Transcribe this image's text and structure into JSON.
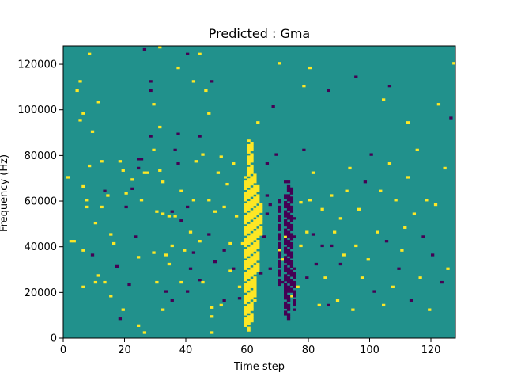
{
  "chart_data": {
    "type": "heatmap",
    "title": "Predicted : Gma",
    "xlabel": "Time step",
    "ylabel": "Frequency (Hz)",
    "xlim": [
      0,
      128
    ],
    "ylim": [
      0,
      128000
    ],
    "x_ticks": [
      0,
      20,
      40,
      60,
      80,
      100,
      120
    ],
    "y_ticks": [
      0,
      20000,
      40000,
      60000,
      80000,
      100000,
      120000
    ],
    "x_tick_labels": [
      "0",
      "20",
      "40",
      "60",
      "80",
      "100",
      "120"
    ],
    "y_tick_labels": [
      "0",
      "20000",
      "40000",
      "60000",
      "80000",
      "100000",
      "120000"
    ],
    "rows": 128,
    "cols": 128,
    "colormap": "viridis",
    "colors": {
      "low": "#440154",
      "mid": "#21918c",
      "high": "#fde725"
    },
    "background_value": 0,
    "cells": [
      [
        1,
        70,
        1
      ],
      [
        2,
        42,
        1
      ],
      [
        3,
        42,
        1
      ],
      [
        4,
        108,
        1
      ],
      [
        5,
        112,
        1
      ],
      [
        5,
        95,
        1
      ],
      [
        6,
        98,
        1
      ],
      [
        6,
        66,
        1
      ],
      [
        6,
        38,
        1
      ],
      [
        6,
        22,
        1
      ],
      [
        7,
        60,
        1
      ],
      [
        7,
        57,
        1
      ],
      [
        8,
        124,
        1
      ],
      [
        8,
        75,
        1
      ],
      [
        9,
        90,
        1
      ],
      [
        9,
        36,
        -1
      ],
      [
        10,
        50,
        1
      ],
      [
        10,
        24,
        1
      ],
      [
        11,
        103,
        1
      ],
      [
        11,
        27,
        1
      ],
      [
        12,
        77,
        1
      ],
      [
        12,
        57,
        1
      ],
      [
        13,
        64,
        -1
      ],
      [
        13,
        24,
        1
      ],
      [
        14,
        62,
        1
      ],
      [
        15,
        45,
        1
      ],
      [
        15,
        18,
        1
      ],
      [
        16,
        41,
        1
      ],
      [
        17,
        31,
        -1
      ],
      [
        18,
        77,
        1
      ],
      [
        18,
        8,
        -1
      ],
      [
        19,
        73,
        1
      ],
      [
        19,
        12,
        1
      ],
      [
        20,
        63,
        1
      ],
      [
        20,
        57,
        -1
      ],
      [
        21,
        23,
        -1
      ],
      [
        22,
        69,
        1
      ],
      [
        22,
        65,
        -1
      ],
      [
        23,
        44,
        -1
      ],
      [
        24,
        78,
        -1
      ],
      [
        24,
        74,
        -1
      ],
      [
        24,
        35,
        1
      ],
      [
        24,
        5,
        1
      ],
      [
        25,
        78,
        -1
      ],
      [
        25,
        60,
        1
      ],
      [
        26,
        126,
        -1
      ],
      [
        26,
        72,
        1
      ],
      [
        26,
        2,
        1
      ],
      [
        27,
        72,
        1
      ],
      [
        28,
        112,
        -1
      ],
      [
        28,
        108,
        -1
      ],
      [
        28,
        88,
        -1
      ],
      [
        29,
        102,
        1
      ],
      [
        29,
        82,
        1
      ],
      [
        29,
        37,
        1
      ],
      [
        30,
        55,
        1
      ],
      [
        30,
        24,
        1
      ],
      [
        31,
        127,
        1
      ],
      [
        31,
        92,
        1
      ],
      [
        31,
        73,
        1
      ],
      [
        32,
        68,
        1
      ],
      [
        32,
        54,
        1
      ],
      [
        32,
        12,
        1
      ],
      [
        33,
        36,
        1
      ],
      [
        33,
        20,
        -1
      ],
      [
        34,
        53,
        1
      ],
      [
        34,
        32,
        1
      ],
      [
        35,
        55,
        -1
      ],
      [
        35,
        40,
        1
      ],
      [
        35,
        16,
        -1
      ],
      [
        36,
        82,
        -1
      ],
      [
        36,
        53,
        1
      ],
      [
        37,
        118,
        1
      ],
      [
        37,
        89,
        -1
      ],
      [
        37,
        76,
        -1
      ],
      [
        38,
        64,
        1
      ],
      [
        38,
        51,
        -1
      ],
      [
        38,
        24,
        1
      ],
      [
        39,
        38,
        1
      ],
      [
        40,
        124,
        -1
      ],
      [
        40,
        57,
        -1
      ],
      [
        40,
        20,
        -1
      ],
      [
        41,
        46,
        1
      ],
      [
        41,
        30,
        -1
      ],
      [
        42,
        112,
        1
      ],
      [
        42,
        60,
        1
      ],
      [
        42,
        37,
        -1
      ],
      [
        43,
        77,
        1
      ],
      [
        44,
        124,
        1
      ],
      [
        44,
        88,
        -1
      ],
      [
        44,
        42,
        1
      ],
      [
        44,
        25,
        -1
      ],
      [
        45,
        80,
        1
      ],
      [
        45,
        24,
        1
      ],
      [
        46,
        108,
        1
      ],
      [
        47,
        98,
        1
      ],
      [
        47,
        60,
        1
      ],
      [
        47,
        45,
        -1
      ],
      [
        48,
        112,
        -1
      ],
      [
        48,
        13,
        1
      ],
      [
        48,
        9,
        1
      ],
      [
        48,
        2,
        1
      ],
      [
        49,
        55,
        1
      ],
      [
        49,
        33,
        -1
      ],
      [
        50,
        72,
        1
      ],
      [
        51,
        79,
        1
      ],
      [
        51,
        14,
        1
      ],
      [
        52,
        16,
        -1
      ],
      [
        52,
        38,
        -1
      ],
      [
        52,
        57,
        1
      ],
      [
        53,
        67,
        1
      ],
      [
        54,
        41,
        1
      ],
      [
        54,
        29,
        1
      ],
      [
        55,
        76,
        1
      ],
      [
        55,
        30,
        -1
      ],
      [
        56,
        53,
        1
      ],
      [
        57,
        17,
        -1
      ],
      [
        57,
        22,
        1
      ],
      [
        58,
        41,
        1
      ],
      [
        59,
        48,
        1
      ],
      [
        60,
        73,
        1
      ],
      [
        61,
        33,
        -1
      ],
      [
        62,
        22,
        1
      ],
      [
        63,
        94,
        1
      ],
      [
        64,
        28,
        -1
      ],
      [
        65,
        44,
        -1
      ],
      [
        66,
        76,
        -1
      ],
      [
        66,
        62,
        -1
      ],
      [
        66,
        54,
        -1
      ],
      [
        67,
        30,
        -1
      ],
      [
        67,
        58,
        -1
      ],
      [
        68,
        101,
        -1
      ],
      [
        69,
        80,
        -1
      ],
      [
        70,
        120,
        1
      ],
      [
        70,
        38,
        1
      ],
      [
        71,
        34,
        1
      ],
      [
        71,
        24,
        -1
      ],
      [
        72,
        68,
        -1
      ],
      [
        72,
        44,
        1
      ],
      [
        72,
        20,
        -1
      ],
      [
        73,
        36,
        -1
      ],
      [
        73,
        16,
        -1
      ],
      [
        74,
        18,
        1
      ],
      [
        75,
        52,
        -1
      ],
      [
        75,
        44,
        -1
      ],
      [
        76,
        22,
        1
      ],
      [
        77,
        40,
        1
      ],
      [
        77,
        59,
        1
      ],
      [
        78,
        110,
        1
      ],
      [
        78,
        82,
        -1
      ],
      [
        79,
        46,
        1
      ],
      [
        79,
        26,
        -1
      ],
      [
        80,
        118,
        1
      ],
      [
        80,
        60,
        1
      ],
      [
        81,
        72,
        1
      ],
      [
        81,
        45,
        -1
      ],
      [
        82,
        32,
        -1
      ],
      [
        83,
        14,
        1
      ],
      [
        84,
        40,
        -1
      ],
      [
        84,
        56,
        1
      ],
      [
        85,
        26,
        1
      ],
      [
        86,
        108,
        -1
      ],
      [
        86,
        14,
        -1
      ],
      [
        87,
        62,
        1
      ],
      [
        87,
        40,
        -1
      ],
      [
        88,
        46,
        1
      ],
      [
        89,
        16,
        1
      ],
      [
        90,
        52,
        1
      ],
      [
        90,
        32,
        -1
      ],
      [
        91,
        36,
        1
      ],
      [
        92,
        64,
        1
      ],
      [
        93,
        74,
        1
      ],
      [
        94,
        12,
        1
      ],
      [
        95,
        40,
        1
      ],
      [
        96,
        56,
        1
      ],
      [
        97,
        26,
        1
      ],
      [
        98,
        68,
        -1
      ],
      [
        99,
        34,
        1
      ],
      [
        100,
        80,
        -1
      ],
      [
        101,
        20,
        -1
      ],
      [
        102,
        46,
        1
      ],
      [
        103,
        64,
        1
      ],
      [
        104,
        14,
        1
      ],
      [
        105,
        42,
        -1
      ],
      [
        106,
        76,
        1
      ],
      [
        107,
        22,
        1
      ],
      [
        108,
        60,
        1
      ],
      [
        109,
        30,
        -1
      ],
      [
        110,
        38,
        1
      ],
      [
        111,
        48,
        1
      ],
      [
        112,
        70,
        1
      ],
      [
        113,
        16,
        -1
      ],
      [
        114,
        54,
        1
      ],
      [
        115,
        82,
        1
      ],
      [
        116,
        26,
        1
      ],
      [
        117,
        44,
        -1
      ],
      [
        118,
        60,
        1
      ],
      [
        119,
        12,
        1
      ],
      [
        120,
        36,
        -1
      ],
      [
        121,
        58,
        1
      ],
      [
        122,
        102,
        1
      ],
      [
        123,
        24,
        -1
      ],
      [
        124,
        74,
        1
      ],
      [
        125,
        30,
        1
      ],
      [
        126,
        96,
        -1
      ],
      [
        127,
        120,
        1
      ],
      [
        112,
        94,
        1
      ],
      [
        106,
        110,
        -1
      ],
      [
        104,
        104,
        1
      ],
      [
        95,
        114,
        -1
      ]
    ],
    "band_high_cols": [
      58,
      59,
      60,
      61,
      62,
      63
    ],
    "band_high_rows": [
      [
        59,
        5,
        70
      ],
      [
        60,
        3,
        86
      ],
      [
        61,
        6,
        86
      ],
      [
        62,
        16,
        72
      ],
      [
        63,
        28,
        66
      ],
      [
        64,
        44,
        58
      ]
    ],
    "band_low_cols": [
      [
        70,
        22,
        60
      ],
      [
        72,
        10,
        62
      ],
      [
        73,
        8,
        68
      ],
      [
        74,
        20,
        66
      ],
      [
        75,
        12,
        30
      ]
    ]
  }
}
